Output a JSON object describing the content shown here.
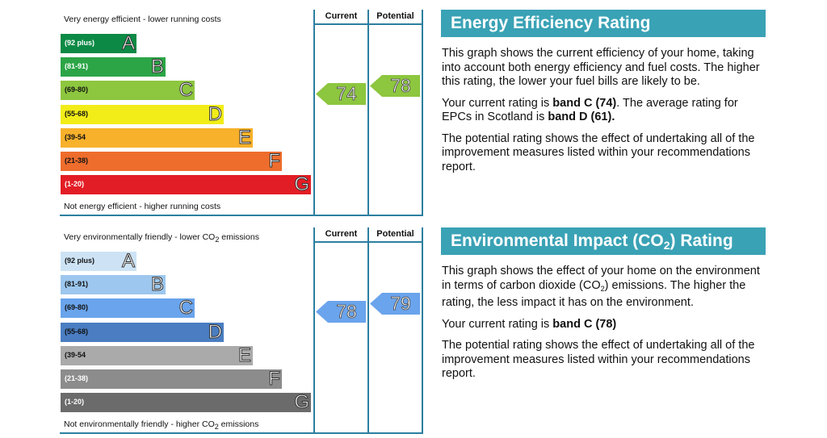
{
  "energy_chart": {
    "top_caption": "Very energy efficient - lower running costs",
    "bottom_caption": "Not energy efficient - higher running costs",
    "current_header": "Current",
    "potential_header": "Potential",
    "bands": [
      {
        "range": "(92 plus)",
        "letter": "A",
        "color": "#0c8a45",
        "text_color": "#ffffff"
      },
      {
        "range": "(81-91)",
        "letter": "B",
        "color": "#2ca547",
        "text_color": "#ffffff"
      },
      {
        "range": "(69-80)",
        "letter": "C",
        "color": "#8dc63f",
        "text_color": "#111111"
      },
      {
        "range": "(55-68)",
        "letter": "D",
        "color": "#f2ed18",
        "text_color": "#111111"
      },
      {
        "range": "(39-54",
        "letter": "E",
        "color": "#f7b12b",
        "text_color": "#111111"
      },
      {
        "range": "(21-38)",
        "letter": "F",
        "color": "#ee6d2d",
        "text_color": "#111111"
      },
      {
        "range": "(1-20)",
        "letter": "G",
        "color": "#e31d25",
        "text_color": "#ffffff"
      }
    ],
    "current_value": "74",
    "potential_value": "78",
    "current_band": 2,
    "potential_band": 2,
    "arrow_color": "#8dc63f"
  },
  "env_chart": {
    "top_caption": "Very environmentally friendly - lower CO",
    "top_caption_sub": "2",
    "top_caption_tail": " emissions",
    "bottom_caption": "Not environmentally friendly - higher CO",
    "bottom_caption_sub": "2",
    "bottom_caption_tail": " emissions",
    "current_header": "Current",
    "potential_header": "Potential",
    "bands": [
      {
        "range": "(92 plus)",
        "letter": "A",
        "color": "#cde3f5",
        "text_color": "#111111"
      },
      {
        "range": "(81-91)",
        "letter": "B",
        "color": "#9dc7ee",
        "text_color": "#111111"
      },
      {
        "range": "(69-80)",
        "letter": "C",
        "color": "#6aa4ec",
        "text_color": "#111111"
      },
      {
        "range": "(55-68)",
        "letter": "D",
        "color": "#4a7dc1",
        "text_color": "#111111"
      },
      {
        "range": "(39-54",
        "letter": "E",
        "color": "#aaaaaa",
        "text_color": "#111111"
      },
      {
        "range": "(21-38)",
        "letter": "F",
        "color": "#8c8c8c",
        "text_color": "#ffffff"
      },
      {
        "range": "(1-20)",
        "letter": "G",
        "color": "#6b6b6b",
        "text_color": "#ffffff"
      }
    ],
    "current_value": "78",
    "potential_value": "79",
    "current_band": 2,
    "potential_band": 2,
    "arrow_color": "#6aa4ec"
  },
  "energy_panel": {
    "heading": "Energy Efficiency Rating",
    "para1": "This graph shows the current efficiency of your home, taking into account both energy efficiency and fuel costs. The higher this rating, the lower your fuel bills are likely to be.",
    "para2_a": "Your current rating is ",
    "para2_b": "band C (74)",
    "para2_c": ". The average rating for EPCs in Scotland is ",
    "para2_d": "band D (61).",
    "para3": "The potential rating shows the effect of undertaking all of the improvement measures listed within your recommendations report."
  },
  "env_panel": {
    "heading_a": "Environmental Impact (CO",
    "heading_sub": "2",
    "heading_b": ") Rating",
    "para1_a": "This graph shows the effect of your home on the environment in terms of carbon dioxide (CO",
    "para1_sub": "2",
    "para1_b": ") emissions. The higher the rating, the less impact it has on the environment.",
    "para2_a": "Your current rating is ",
    "para2_b": "band C (78)",
    "para3": "The potential rating shows the effect of undertaking all of the improvement measures listed within your recommendations report."
  }
}
